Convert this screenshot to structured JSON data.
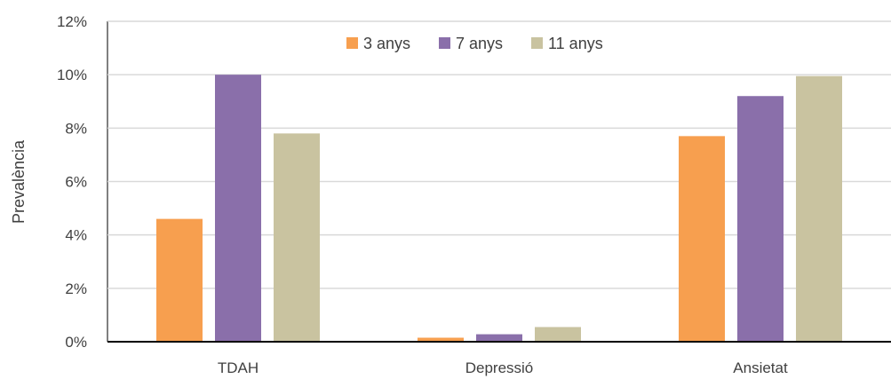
{
  "chart_data": {
    "type": "bar",
    "categories": [
      "TDAH",
      "Depressió",
      "Ansietat"
    ],
    "series": [
      {
        "name": "3 anys",
        "color": "#F79F4F",
        "values": [
          4.6,
          0.15,
          7.7
        ]
      },
      {
        "name": "7 anys",
        "color": "#8A6FAA",
        "values": [
          10.0,
          0.28,
          9.2
        ]
      },
      {
        "name": "11 anys",
        "color": "#C9C3A0",
        "values": [
          7.8,
          0.55,
          9.95
        ]
      }
    ],
    "ylabel": "Prevalència",
    "ylim": [
      0,
      12
    ],
    "yticks": [
      0,
      2,
      4,
      6,
      8,
      10,
      12
    ],
    "ytick_labels": [
      "0%",
      "2%",
      "4%",
      "6%",
      "8%",
      "10%",
      "12%"
    ],
    "grid": true,
    "legend_position": "top-center"
  }
}
